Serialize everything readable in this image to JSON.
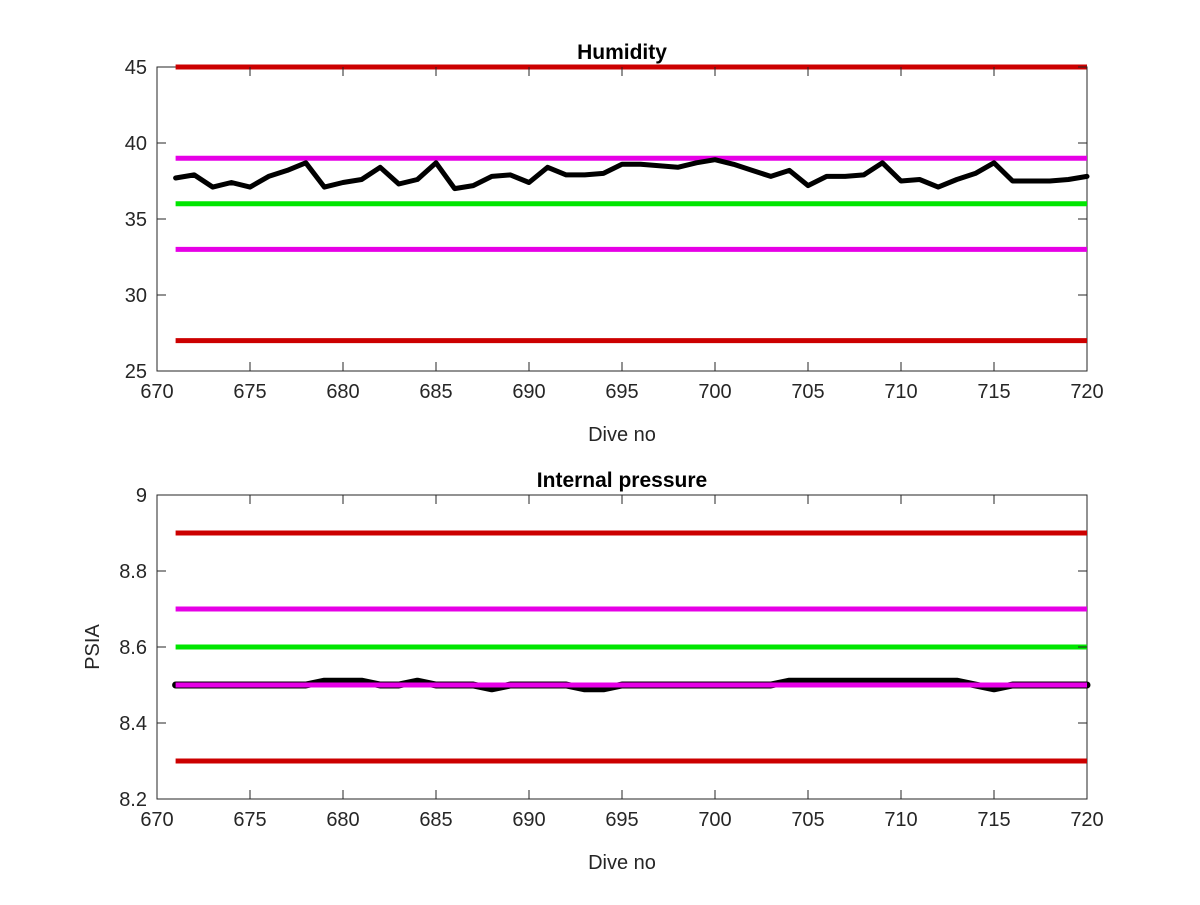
{
  "chart_data": [
    {
      "type": "line",
      "title": "Humidity",
      "xlabel": "Dive no",
      "ylabel": "",
      "xlim": [
        670,
        720
      ],
      "ylim": [
        25,
        45
      ],
      "xticks": [
        670,
        675,
        680,
        685,
        690,
        695,
        700,
        705,
        710,
        715,
        720
      ],
      "yticks": [
        25,
        30,
        35,
        40,
        45
      ],
      "grid": false,
      "reference_lines": [
        {
          "y": 45,
          "color": "#cc0000"
        },
        {
          "y": 39,
          "color": "#e600e6"
        },
        {
          "y": 36,
          "color": "#00e600"
        },
        {
          "y": 33,
          "color": "#e600e6"
        },
        {
          "y": 27,
          "color": "#cc0000"
        }
      ],
      "series": [
        {
          "color": "#000000",
          "x": [
            671,
            672,
            673,
            674,
            675,
            676,
            677,
            678,
            679,
            680,
            681,
            682,
            683,
            684,
            685,
            686,
            687,
            688,
            689,
            690,
            691,
            692,
            693,
            694,
            695,
            696,
            697,
            698,
            699,
            700,
            701,
            702,
            703,
            704,
            705,
            706,
            707,
            708,
            709,
            710,
            711,
            712,
            713,
            714,
            715,
            716,
            717,
            718,
            719,
            720
          ],
          "y": [
            37.7,
            37.9,
            37.1,
            37.4,
            37.1,
            37.8,
            38.2,
            38.7,
            37.1,
            37.4,
            37.6,
            38.4,
            37.3,
            37.6,
            38.7,
            37.0,
            37.2,
            37.8,
            37.9,
            37.4,
            38.4,
            37.9,
            37.9,
            38.0,
            38.6,
            38.6,
            38.5,
            38.4,
            38.7,
            38.9,
            38.6,
            38.2,
            37.8,
            38.2,
            37.2,
            37.8,
            37.8,
            37.9,
            38.7,
            37.5,
            37.6,
            37.1,
            37.6,
            38.0,
            38.7,
            37.5,
            37.5,
            37.5,
            37.6,
            37.8
          ]
        }
      ]
    },
    {
      "type": "line",
      "title": "Internal pressure",
      "xlabel": "Dive no",
      "ylabel": "PSIA",
      "xlim": [
        670,
        720
      ],
      "ylim": [
        8.2,
        9.0
      ],
      "xticks": [
        670,
        675,
        680,
        685,
        690,
        695,
        700,
        705,
        710,
        715,
        720
      ],
      "yticks": [
        8.2,
        8.4,
        8.6,
        8.8,
        9.0
      ],
      "ytick_labels": [
        "8.2",
        "8.4",
        "8.6",
        "8.8",
        "9"
      ],
      "grid": false,
      "reference_lines": [
        {
          "y": 8.9,
          "color": "#cc0000"
        },
        {
          "y": 8.7,
          "color": "#e600e6"
        },
        {
          "y": 8.6,
          "color": "#00e600"
        },
        {
          "y": 8.3,
          "color": "#cc0000"
        }
      ],
      "series": [
        {
          "color": "#000000",
          "x": [
            671,
            672,
            673,
            674,
            675,
            676,
            677,
            678,
            679,
            680,
            681,
            682,
            683,
            684,
            685,
            686,
            687,
            688,
            689,
            690,
            691,
            692,
            693,
            694,
            695,
            696,
            697,
            698,
            699,
            700,
            701,
            702,
            703,
            704,
            705,
            706,
            707,
            708,
            709,
            710,
            711,
            712,
            713,
            714,
            715,
            716,
            717,
            718,
            719,
            720
          ],
          "y": [
            8.5,
            8.5,
            8.5,
            8.5,
            8.5,
            8.5,
            8.5,
            8.5,
            8.51,
            8.51,
            8.51,
            8.5,
            8.5,
            8.51,
            8.5,
            8.5,
            8.5,
            8.49,
            8.5,
            8.5,
            8.5,
            8.5,
            8.49,
            8.49,
            8.5,
            8.5,
            8.5,
            8.5,
            8.5,
            8.5,
            8.5,
            8.5,
            8.5,
            8.51,
            8.51,
            8.51,
            8.51,
            8.51,
            8.51,
            8.51,
            8.51,
            8.51,
            8.51,
            8.5,
            8.49,
            8.5,
            8.5,
            8.5,
            8.5,
            8.5
          ]
        }
      ],
      "overlay_lines": [
        {
          "y": 8.5,
          "color": "#e600e6"
        }
      ]
    }
  ]
}
